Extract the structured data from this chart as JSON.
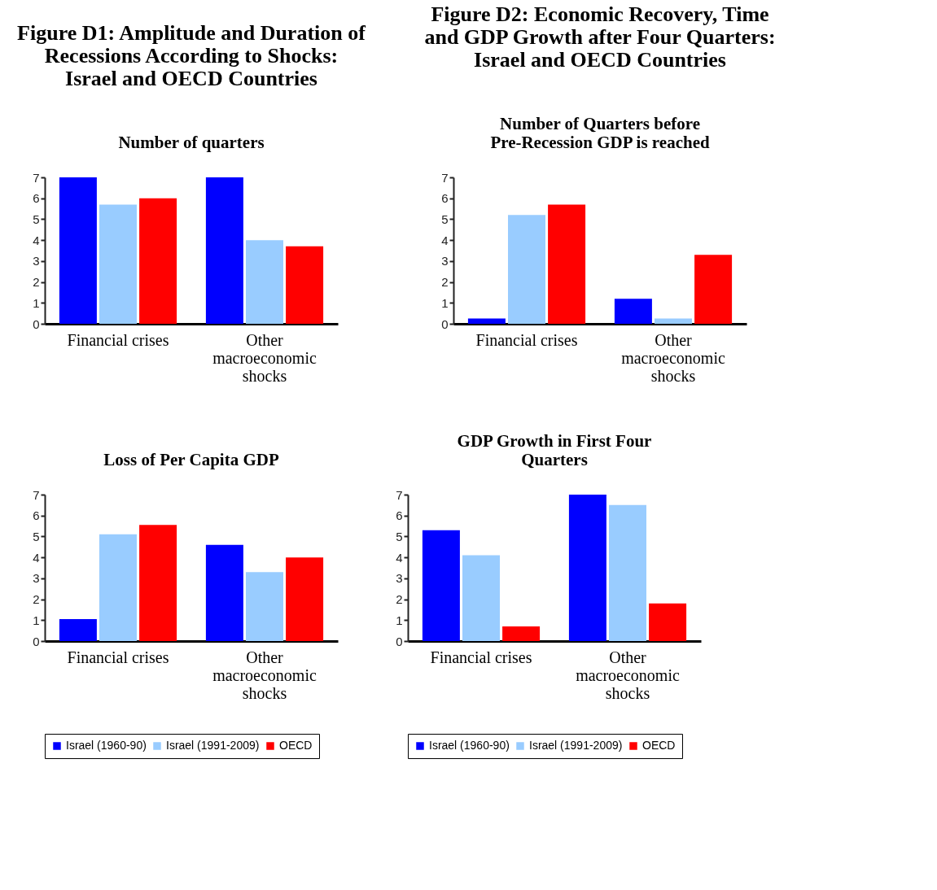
{
  "chart_data": [
    {
      "type": "bar",
      "annotations": [
        "Figure D1: Amplitude and Duration of Recessions According to Shocks: Israel and OECD Countries"
      ],
      "title": "Number of quarters",
      "categories": [
        "Financial crises",
        "Other macroeconomic shocks"
      ],
      "ylim": [
        0,
        7
      ],
      "yticks": [
        0,
        1,
        2,
        3,
        4,
        5,
        6,
        7
      ],
      "grid": false,
      "legend": false,
      "series": [
        {
          "color": "#0000ff",
          "values": [
            7.0,
            7.0
          ]
        },
        {
          "color": "#99ccff",
          "values": [
            5.7,
            4.0
          ]
        },
        {
          "color": "#ff0000",
          "values": [
            6.0,
            3.7
          ]
        }
      ]
    },
    {
      "type": "bar",
      "annotations": [
        "Figure D2: Economic Recovery, Time and GDP Growth after Four Quarters: Israel and OECD Countries"
      ],
      "title": "Number of Quarters before Pre-Recession GDP is reached",
      "categories": [
        "Financial crises",
        "Other macroeconomic shocks"
      ],
      "ylim": [
        0,
        7
      ],
      "yticks": [
        0,
        1,
        2,
        3,
        4,
        5,
        6,
        7
      ],
      "grid": false,
      "legend": false,
      "series": [
        {
          "color": "#0000ff",
          "values": [
            0.25,
            1.2
          ]
        },
        {
          "color": "#99ccff",
          "values": [
            5.2,
            0.25
          ]
        },
        {
          "color": "#ff0000",
          "values": [
            5.7,
            3.3
          ]
        }
      ]
    },
    {
      "type": "bar",
      "title": "Loss of Per Capita GDP",
      "categories": [
        "Financial crises",
        "Other macroeconomic shocks"
      ],
      "ylim": [
        0,
        7
      ],
      "yticks": [
        0,
        1,
        2,
        3,
        4,
        5,
        6,
        7
      ],
      "grid": false,
      "legend": "bottom",
      "series": [
        {
          "name": "Israel (1960-90)",
          "color": "#0000ff",
          "values": [
            1.05,
            4.6
          ]
        },
        {
          "name": "Israel (1991-2009)",
          "color": "#99ccff",
          "values": [
            5.1,
            3.3
          ]
        },
        {
          "name": "OECD",
          "color": "#ff0000",
          "values": [
            5.55,
            4.0
          ]
        }
      ]
    },
    {
      "type": "bar",
      "title": "GDP Growth in First Four Quarters",
      "categories": [
        "Financial crises",
        "Other macroeconomic shocks"
      ],
      "ylim": [
        0,
        7
      ],
      "yticks": [
        0,
        1,
        2,
        3,
        4,
        5,
        6,
        7
      ],
      "grid": false,
      "legend": "bottom",
      "series": [
        {
          "name": "Israel (1960-90)",
          "color": "#0000ff",
          "values": [
            5.3,
            7.0
          ]
        },
        {
          "name": "Israel (1991-2009)",
          "color": "#99ccff",
          "values": [
            4.1,
            6.5
          ]
        },
        {
          "name": "OECD",
          "color": "#ff0000",
          "values": [
            0.7,
            1.8
          ]
        }
      ]
    }
  ]
}
